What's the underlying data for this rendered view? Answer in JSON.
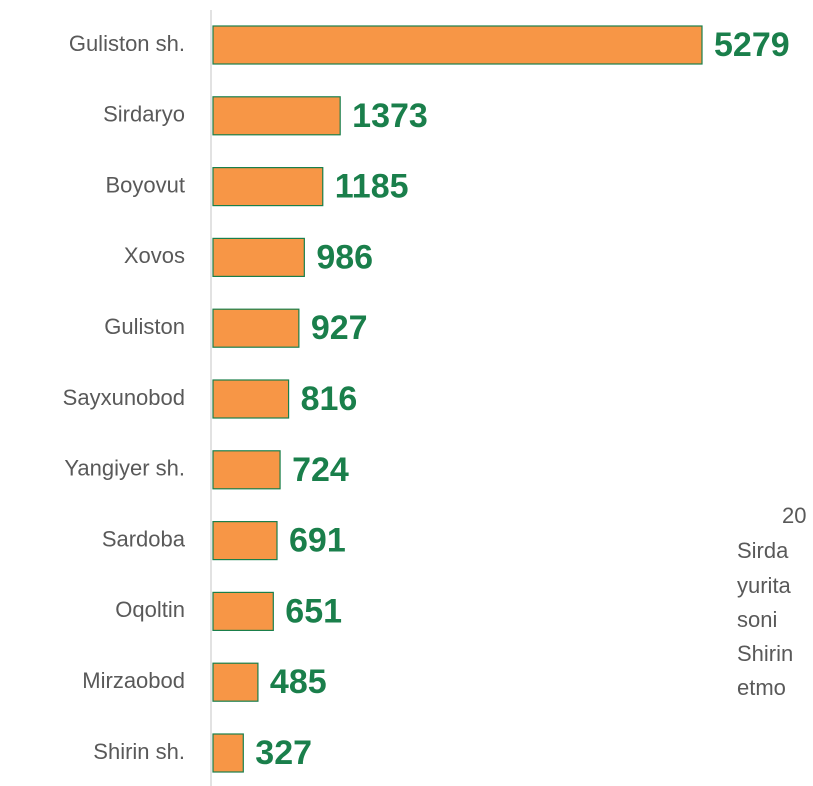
{
  "chart_data": {
    "type": "bar",
    "orientation": "horizontal",
    "categories": [
      "Guliston sh.",
      "Sirdaryo",
      "Boyovut",
      "Xovos",
      "Guliston",
      "Sayxunobod",
      "Yangiyer sh.",
      "Sardoba",
      "Oqoltin",
      "Mirzaobod",
      "Shirin sh."
    ],
    "values": [
      5279,
      1373,
      1185,
      986,
      927,
      816,
      724,
      691,
      651,
      485,
      327
    ],
    "color": "#f79646",
    "edge_color": "#1a7f4b",
    "label_color": "#1a7f4b",
    "annotation_lines": [
      "20",
      "Sirda",
      "yurita",
      "soni",
      "Shirin",
      "etmo"
    ]
  }
}
